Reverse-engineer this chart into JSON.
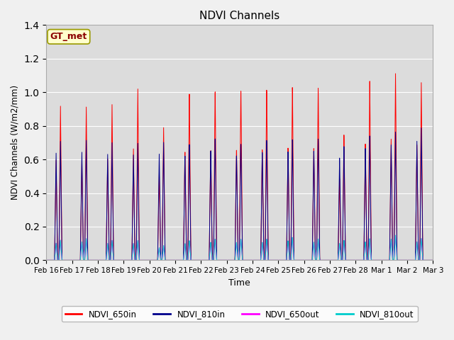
{
  "title": "NDVI Channels",
  "xlabel": "Time",
  "ylabel": "NDVI Channels (W/m2/mm)",
  "ylim": [
    0,
    1.4
  ],
  "annotation_text": "GT_met",
  "tick_labels": [
    "Feb 16",
    "Feb 17",
    "Feb 18",
    "Feb 19",
    "Feb 20",
    "Feb 21",
    "Feb 22",
    "Feb 23",
    "Feb 24",
    "Feb 25",
    "Feb 26",
    "Feb 27",
    "Feb 28",
    "Mar 1",
    "Mar 2",
    "Mar 3"
  ],
  "colors": {
    "NDVI_650in": "#FF0000",
    "NDVI_810in": "#00008B",
    "NDVI_650out": "#FF00FF",
    "NDVI_810out": "#00CCCC"
  },
  "peak_heights_650in": [
    0.92,
    0.92,
    0.94,
    1.04,
    0.81,
    1.02,
    1.04,
    1.05,
    1.05,
    1.06,
    1.05,
    0.76,
    1.08,
    1.12,
    1.06
  ],
  "peak_heights_810in": [
    0.71,
    0.72,
    0.71,
    0.71,
    0.72,
    0.71,
    0.75,
    0.72,
    0.74,
    0.74,
    0.74,
    0.69,
    0.75,
    0.77,
    0.79
  ],
  "peak_heights_650out": [
    0.12,
    0.13,
    0.12,
    0.12,
    0.09,
    0.12,
    0.13,
    0.13,
    0.13,
    0.14,
    0.13,
    0.12,
    0.13,
    0.15,
    0.13
  ],
  "peak_heights_810out": [
    0.12,
    0.13,
    0.12,
    0.12,
    0.09,
    0.12,
    0.13,
    0.13,
    0.13,
    0.14,
    0.13,
    0.12,
    0.13,
    0.15,
    0.13
  ],
  "figsize": [
    6.4,
    4.8
  ],
  "dpi": 100
}
